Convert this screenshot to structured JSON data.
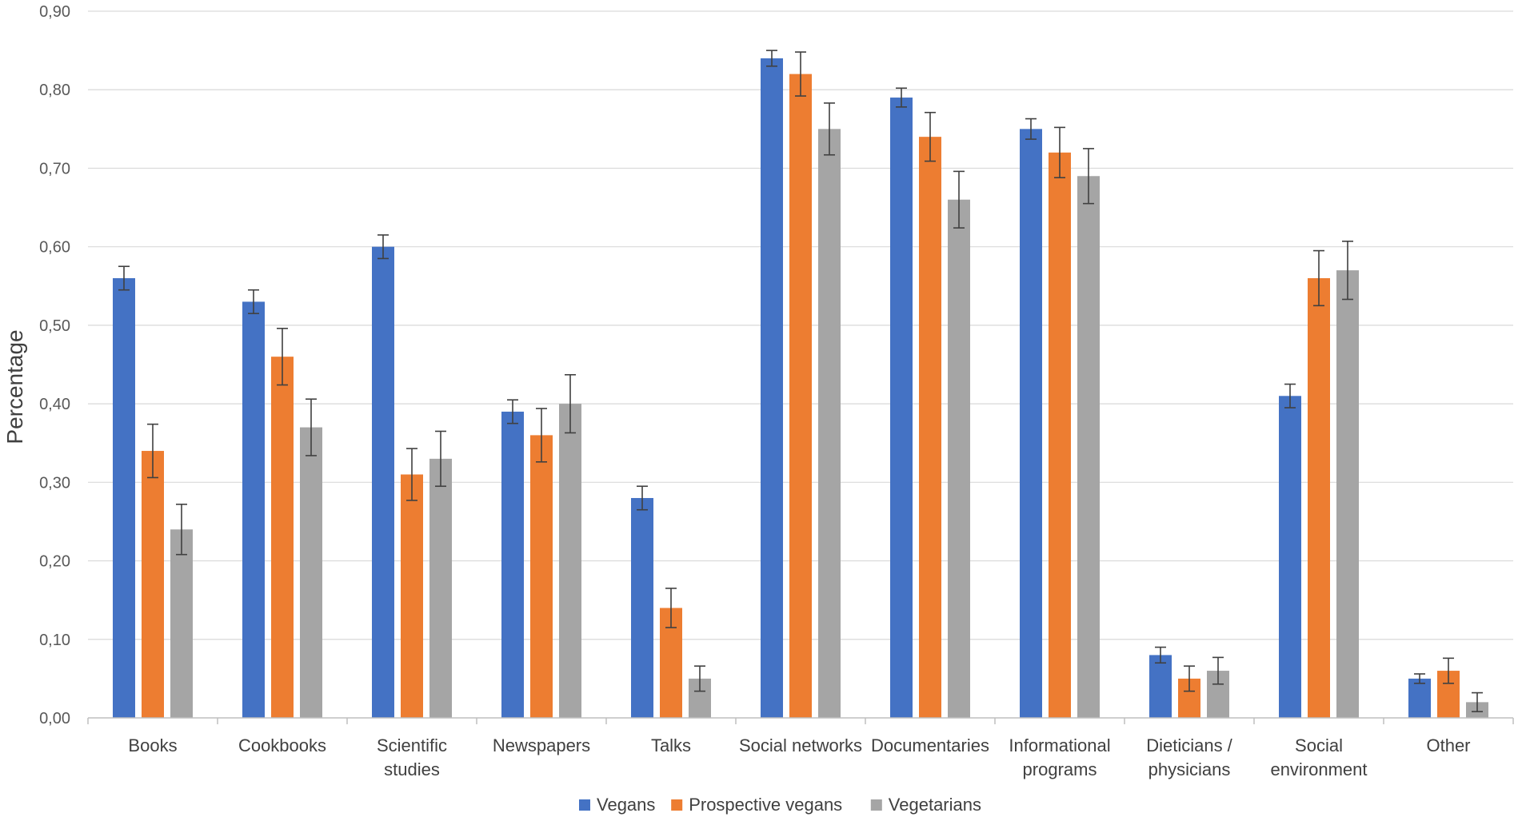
{
  "chart_data": {
    "type": "bar",
    "title": "",
    "xlabel": "",
    "ylabel": "Percentage",
    "ylim": [
      0,
      0.9
    ],
    "yticks": [
      "0,00",
      "0,10",
      "0,20",
      "0,30",
      "0,40",
      "0,50",
      "0,60",
      "0,70",
      "0,80",
      "0,90"
    ],
    "grid": true,
    "legend_position": "bottom",
    "categories": [
      [
        "Books"
      ],
      [
        "Cookbooks"
      ],
      [
        "Scientific",
        "studies"
      ],
      [
        "Newspapers"
      ],
      [
        "Talks"
      ],
      [
        "Social networks"
      ],
      [
        "Documentaries"
      ],
      [
        "Informational",
        "programs"
      ],
      [
        "Dieticians /",
        "physicians"
      ],
      [
        "Social",
        "environment"
      ],
      [
        "Other"
      ]
    ],
    "series": [
      {
        "name": "Vegans",
        "color": "#4472C4",
        "values": [
          0.56,
          0.53,
          0.6,
          0.39,
          0.28,
          0.84,
          0.79,
          0.75,
          0.08,
          0.41,
          0.05
        ],
        "errors": [
          0.015,
          0.015,
          0.015,
          0.015,
          0.015,
          0.01,
          0.012,
          0.013,
          0.01,
          0.015,
          0.006
        ]
      },
      {
        "name": "Prospective vegans",
        "color": "#ED7D31",
        "values": [
          0.34,
          0.46,
          0.31,
          0.36,
          0.14,
          0.82,
          0.74,
          0.72,
          0.05,
          0.56,
          0.06
        ],
        "errors": [
          0.034,
          0.036,
          0.033,
          0.034,
          0.025,
          0.028,
          0.031,
          0.032,
          0.016,
          0.035,
          0.016
        ]
      },
      {
        "name": "Vegetarians",
        "color": "#A5A5A5",
        "values": [
          0.24,
          0.37,
          0.33,
          0.4,
          0.05,
          0.75,
          0.66,
          0.69,
          0.06,
          0.57,
          0.02
        ],
        "errors": [
          0.032,
          0.036,
          0.035,
          0.037,
          0.016,
          0.033,
          0.036,
          0.035,
          0.017,
          0.037,
          0.012
        ]
      }
    ]
  }
}
